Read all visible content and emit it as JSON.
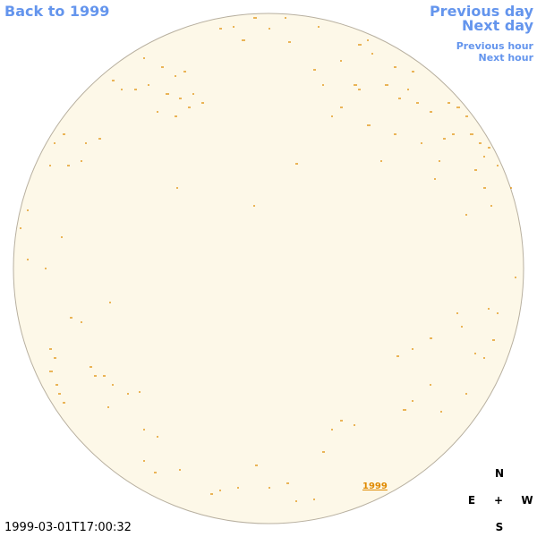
{
  "nav": {
    "back": "Back to 1999",
    "previous_day": "Previous day",
    "next_day": "Next day",
    "previous_hour": "Previous hour",
    "next_hour": "Next hour"
  },
  "map_label": "1999",
  "compass": {
    "north": "N",
    "east": "E",
    "center": "+",
    "west": "W",
    "south": "S"
  },
  "timestamp": "1999-03-01T17:00:32"
}
